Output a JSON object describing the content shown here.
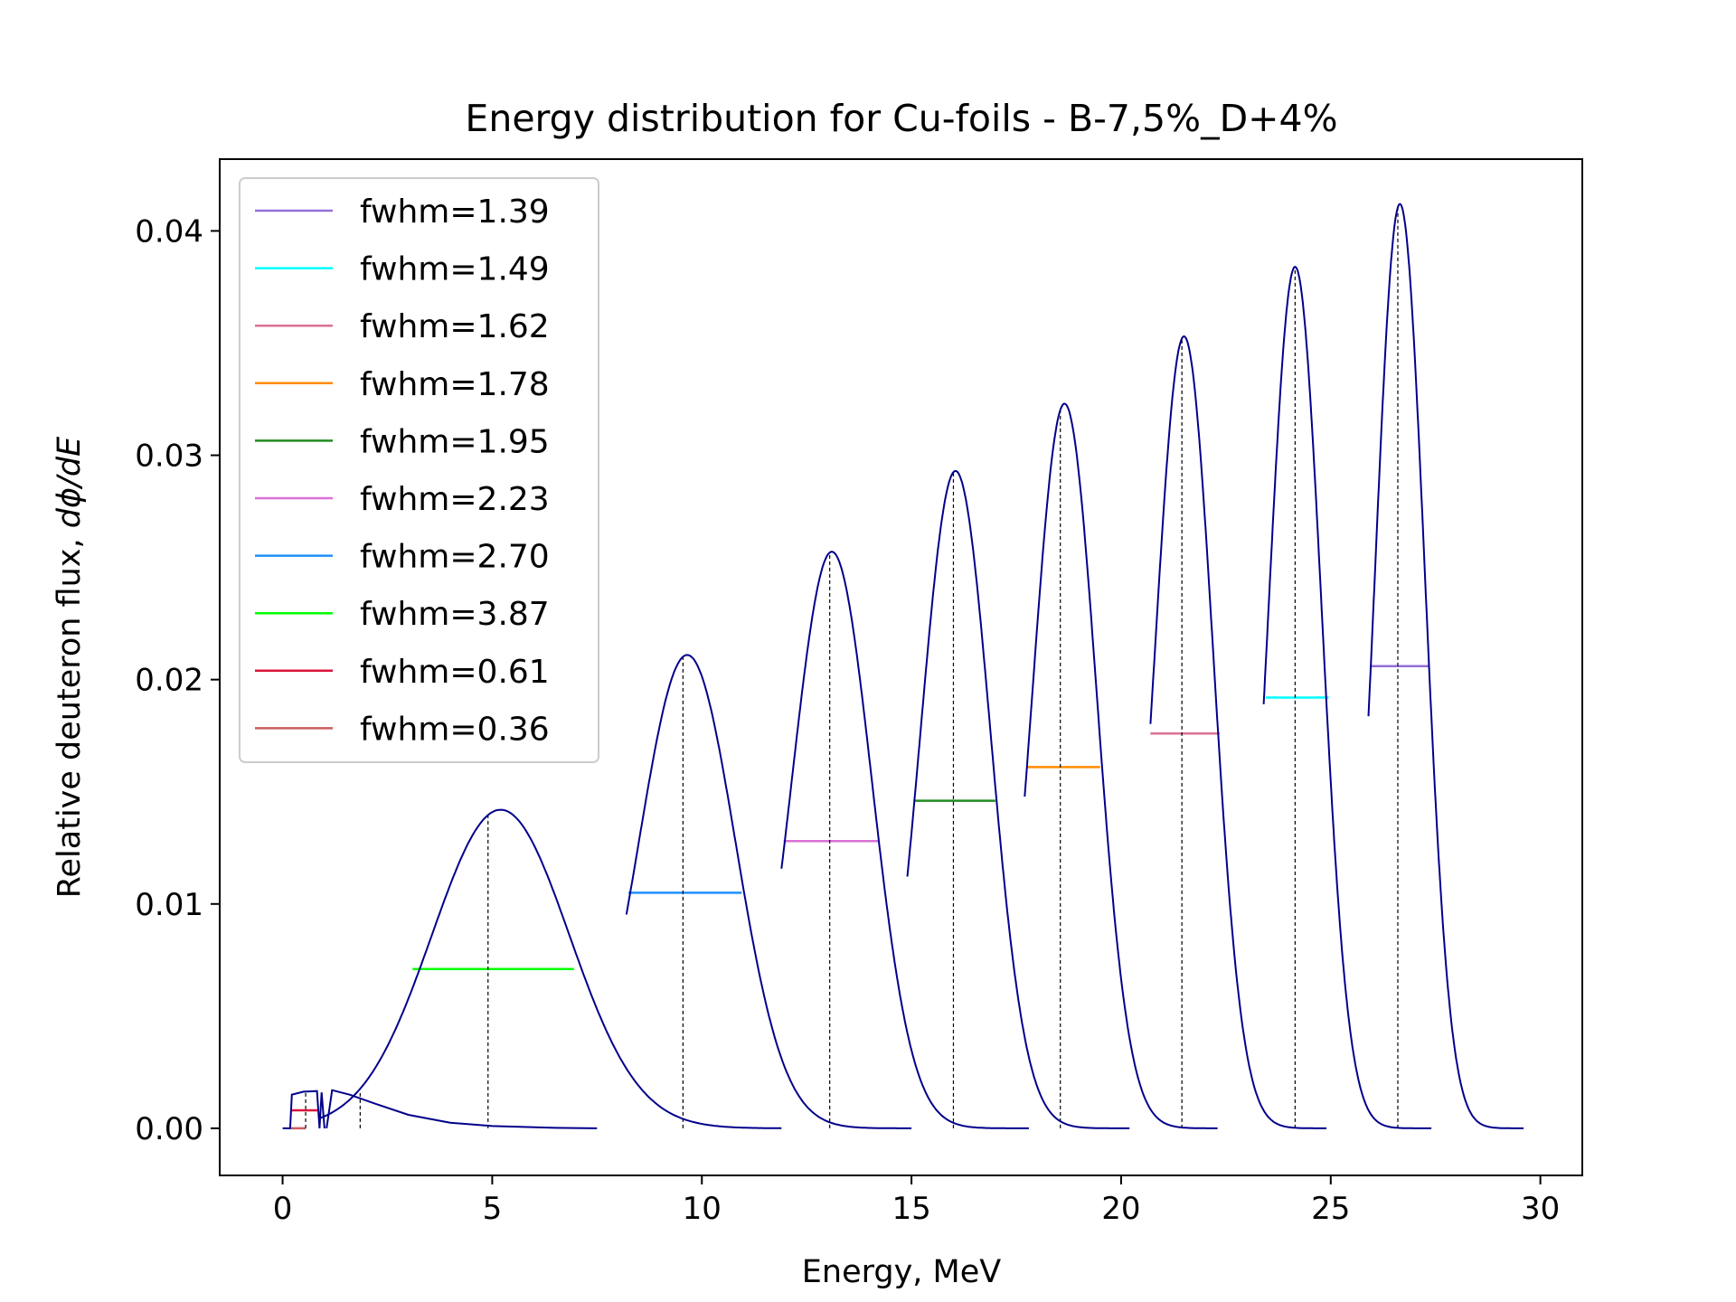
{
  "chart_data": {
    "type": "line",
    "title": "Energy distribution for Cu-foils - B-7,5%_D+4%",
    "xlabel": "Energy, MeV",
    "ylabel_prefix": "Relative deuteron flux, ",
    "ylabel_math": "dϕ/dE",
    "xlim": [
      -1.5,
      31
    ],
    "ylim": [
      -0.0021,
      0.0432
    ],
    "xticks": [
      0,
      5,
      10,
      15,
      20,
      25,
      30
    ],
    "xtick_labels": [
      "0",
      "5",
      "10",
      "15",
      "20",
      "25",
      "30"
    ],
    "yticks": [
      0.0,
      0.01,
      0.02,
      0.03,
      0.04
    ],
    "ytick_labels": [
      "0.00",
      "0.01",
      "0.02",
      "0.03",
      "0.04"
    ],
    "grid": false,
    "legend_position": "upper left",
    "curve_color": "#00008b",
    "peaks": [
      {
        "fwhm_label": "fwhm=1.39",
        "color": "#9370db",
        "mean_energy": 26.6,
        "peak_energy": 26.65,
        "peak_value": 0.0412,
        "sigma": 0.59,
        "fwhm_start": 25.95,
        "fwhm_end": 27.35,
        "half_max": 0.0206,
        "range": [
          25.9,
          29.6
        ]
      },
      {
        "fwhm_label": "fwhm=1.49",
        "color": "#00ffff",
        "mean_energy": 24.15,
        "peak_energy": 24.15,
        "peak_value": 0.0384,
        "sigma": 0.63,
        "fwhm_start": 23.45,
        "fwhm_end": 24.95,
        "half_max": 0.0192,
        "range": [
          23.4,
          27.4
        ]
      },
      {
        "fwhm_label": "fwhm=1.62",
        "color": "#db7093",
        "mean_energy": 21.45,
        "peak_energy": 21.5,
        "peak_value": 0.0353,
        "sigma": 0.69,
        "fwhm_start": 20.7,
        "fwhm_end": 22.35,
        "half_max": 0.0176,
        "range": [
          20.7,
          24.9
        ]
      },
      {
        "fwhm_label": "fwhm=1.78",
        "color": "#ff8c00",
        "mean_energy": 18.55,
        "peak_energy": 18.65,
        "peak_value": 0.0323,
        "sigma": 0.76,
        "fwhm_start": 17.75,
        "fwhm_end": 19.5,
        "half_max": 0.0161,
        "range": [
          17.7,
          22.3
        ]
      },
      {
        "fwhm_label": "fwhm=1.95",
        "color": "#228b22",
        "mean_energy": 16.0,
        "peak_energy": 16.05,
        "peak_value": 0.0293,
        "sigma": 0.83,
        "fwhm_start": 15.05,
        "fwhm_end": 17.0,
        "half_max": 0.0146,
        "range": [
          14.9,
          20.2
        ]
      },
      {
        "fwhm_label": "fwhm=2.23",
        "color": "#da70d6",
        "mean_energy": 13.05,
        "peak_energy": 13.1,
        "peak_value": 0.0257,
        "sigma": 0.95,
        "fwhm_start": 11.95,
        "fwhm_end": 14.2,
        "half_max": 0.0128,
        "range": [
          11.9,
          17.8
        ]
      },
      {
        "fwhm_label": "fwhm=2.70",
        "color": "#1e90ff",
        "mean_energy": 9.55,
        "peak_energy": 9.65,
        "peak_value": 0.0211,
        "sigma": 1.15,
        "fwhm_start": 8.25,
        "fwhm_end": 10.95,
        "half_max": 0.0105,
        "range": [
          8.2,
          15.0
        ]
      },
      {
        "fwhm_label": "fwhm=3.87",
        "color": "#00ff00",
        "mean_energy": 4.9,
        "peak_energy": 5.2,
        "peak_value": 0.0142,
        "sigma": 1.64,
        "fwhm_start": 3.1,
        "fwhm_end": 6.95,
        "half_max": 0.0071,
        "range": [
          0.9,
          11.9
        ]
      },
      {
        "fwhm_label": "fwhm=0.61",
        "color": "#dc143c",
        "mean_energy": 0.55,
        "peak_energy": 0.5,
        "peak_value": 0.0016,
        "fwhm_start": 0.2,
        "fwhm_end": 0.85,
        "half_max": 0.0008,
        "range": [
          0.0,
          1.0
        ]
      },
      {
        "fwhm_label": "fwhm=0.36",
        "color": "#cd5c5c",
        "mean_energy": 1.85,
        "peak_energy": 1.3,
        "peak_value": 0.0017,
        "fwhm_start": 0.2,
        "fwhm_end": 0.55,
        "half_max": 0.0,
        "range": [
          1.05,
          7.5
        ]
      }
    ]
  }
}
